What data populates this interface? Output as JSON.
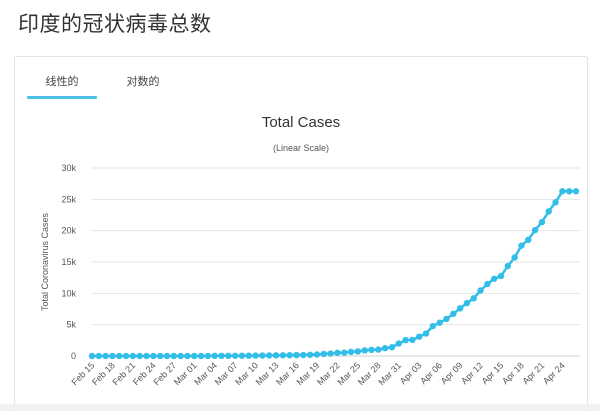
{
  "page": {
    "title": "印度的冠状病毒总数"
  },
  "tabs": [
    {
      "label": "线性的",
      "active": true
    },
    {
      "label": "对数的",
      "active": false
    }
  ],
  "colors": {
    "series": "#33bde9",
    "tab_underline": "#4cc0e6",
    "grid": "#e6e6e6"
  },
  "chart_data": {
    "type": "line",
    "title": "Total Cases",
    "subtitle": "(Linear Scale)",
    "ylabel": "Total Coronavirus Cases",
    "ylim": [
      0,
      30000
    ],
    "y_ticks": [
      "0",
      "5k",
      "10k",
      "15k",
      "20k",
      "25k",
      "30k"
    ],
    "y_tick_values": [
      0,
      5000,
      10000,
      15000,
      20000,
      25000,
      30000
    ],
    "x_tick_labels": [
      "Feb 15",
      "Feb 18",
      "Feb 21",
      "Feb 24",
      "Feb 27",
      "Mar 01",
      "Mar 04",
      "Mar 07",
      "Mar 10",
      "Mar 13",
      "Mar 16",
      "Mar 19",
      "Mar 22",
      "Mar 25",
      "Mar 28",
      "Mar 31",
      "Apr 03",
      "Apr 06",
      "Apr 09",
      "Apr 12",
      "Apr 15",
      "Apr 18",
      "Apr 21",
      "Apr 24"
    ],
    "grid": true,
    "legend": "none",
    "series": [
      {
        "x": [
          "Feb 15",
          "Feb 16",
          "Feb 17",
          "Feb 18",
          "Feb 19",
          "Feb 20",
          "Feb 21",
          "Feb 22",
          "Feb 23",
          "Feb 24",
          "Feb 25",
          "Feb 26",
          "Feb 27",
          "Feb 28",
          "Feb 29",
          "Mar 01",
          "Mar 02",
          "Mar 03",
          "Mar 04",
          "Mar 05",
          "Mar 06",
          "Mar 07",
          "Mar 08",
          "Mar 09",
          "Mar 10",
          "Mar 11",
          "Mar 12",
          "Mar 13",
          "Mar 14",
          "Mar 15",
          "Mar 16",
          "Mar 17",
          "Mar 18",
          "Mar 19",
          "Mar 20",
          "Mar 21",
          "Mar 22",
          "Mar 23",
          "Mar 24",
          "Mar 25",
          "Mar 26",
          "Mar 27",
          "Mar 28",
          "Mar 29",
          "Mar 30",
          "Mar 31",
          "Apr 01",
          "Apr 02",
          "Apr 03",
          "Apr 04",
          "Apr 05",
          "Apr 06",
          "Apr 07",
          "Apr 08",
          "Apr 09",
          "Apr 10",
          "Apr 11",
          "Apr 12",
          "Apr 13",
          "Apr 14",
          "Apr 15",
          "Apr 16",
          "Apr 17",
          "Apr 18",
          "Apr 19",
          "Apr 20",
          "Apr 21",
          "Apr 22",
          "Apr 23",
          "Apr 24",
          "Apr 25",
          "Apr 26"
        ],
        "values": [
          3,
          3,
          3,
          3,
          3,
          3,
          3,
          3,
          3,
          3,
          3,
          3,
          3,
          3,
          3,
          3,
          5,
          6,
          28,
          30,
          31,
          34,
          39,
          48,
          62,
          73,
          82,
          102,
          113,
          119,
          142,
          156,
          194,
          244,
          330,
          396,
          499,
          536,
          657,
          727,
          887,
          987,
          1024,
          1251,
          1397,
          1998,
          2543,
          2567,
          3082,
          3588,
          4778,
          5311,
          5916,
          6725,
          7598,
          8446,
          9205,
          10453,
          11487,
          12322,
          12759,
          14352,
          15722,
          17615,
          18539,
          20080,
          21370,
          23077,
          24530,
          26283,
          26283,
          26283
        ]
      }
    ]
  }
}
